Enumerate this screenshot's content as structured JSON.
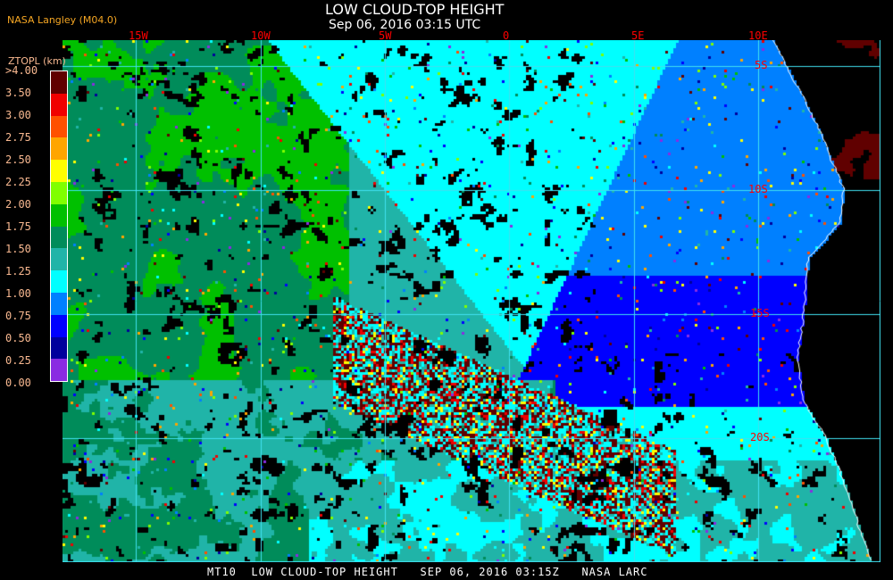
{
  "header": {
    "title": "LOW CLOUD-TOP HEIGHT",
    "subtitle": "Sep 06, 2016 03:15 UTC",
    "source": "NASA Langley (M04.0)"
  },
  "map": {
    "longitude_labels": [
      "15W",
      "10W",
      "5W",
      "0",
      "5E",
      "10E"
    ],
    "latitude_labels": [
      "5S",
      "10S",
      "15S",
      "20S"
    ],
    "gridline_color": "#40e0f0",
    "coastline_color": "#ffffff"
  },
  "colorbar": {
    "title": "ZTOPL (km)",
    "labels": [
      ">4.00",
      "3.50",
      "3.00",
      "2.75",
      "2.50",
      "2.25",
      "2.00",
      "1.75",
      "1.50",
      "1.25",
      "1.00",
      "0.75",
      "0.50",
      "0.25",
      "0.00"
    ],
    "colors": [
      "#600000",
      "#f00000",
      "#ff5000",
      "#ffa500",
      "#ffff00",
      "#80ff00",
      "#00c000",
      "#008c5a",
      "#20b4a8",
      "#00ffff",
      "#0080ff",
      "#0000ff",
      "#00009c",
      "#8a2be2"
    ]
  },
  "footer": "MT10  LOW CLOUD-TOP HEIGHT   SEP 06, 2016 03:15Z   NASA LARC"
}
